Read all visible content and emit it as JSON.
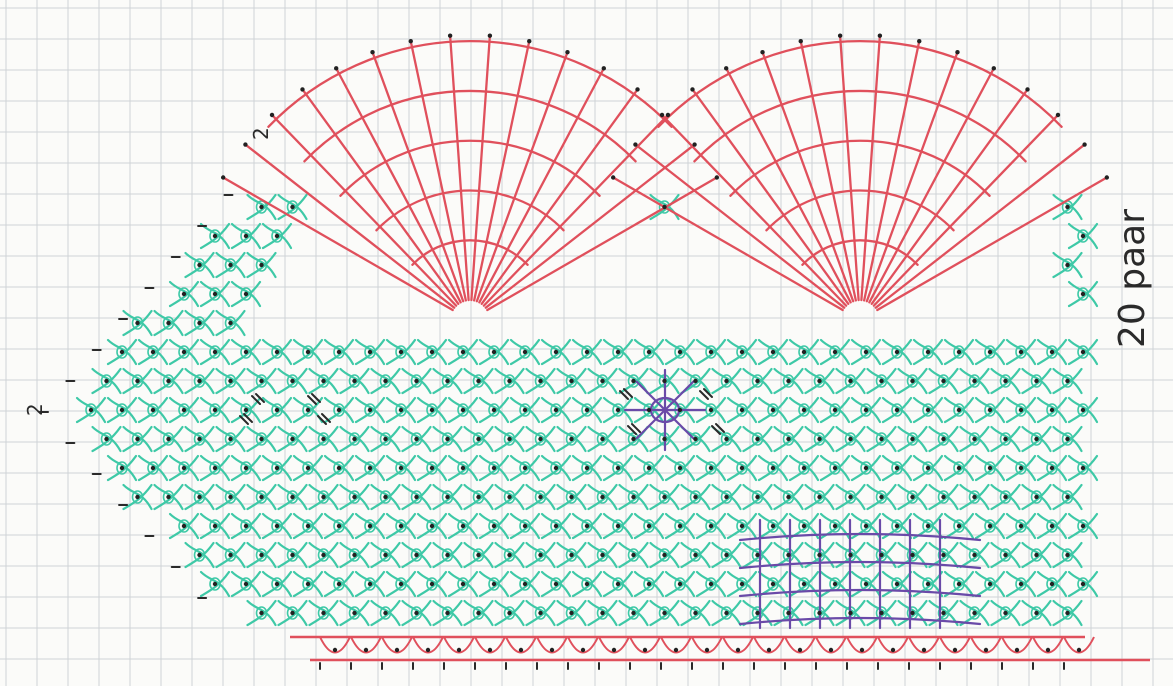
{
  "pattern": {
    "pair_count_label": "20 paar",
    "corner_label_top": "2",
    "corner_label_left": "2",
    "tick_small": "1",
    "tick_double": "11"
  },
  "colors": {
    "background": "#fbfbf9",
    "grid": "#cfd3d6",
    "cloth_stitch": "#e0505c",
    "half_stitch": "#3ec9a7",
    "spider": "#6a4aa8",
    "pin_dot": "#222222",
    "ink": "#2a2a2a"
  },
  "legend_visible": false
}
